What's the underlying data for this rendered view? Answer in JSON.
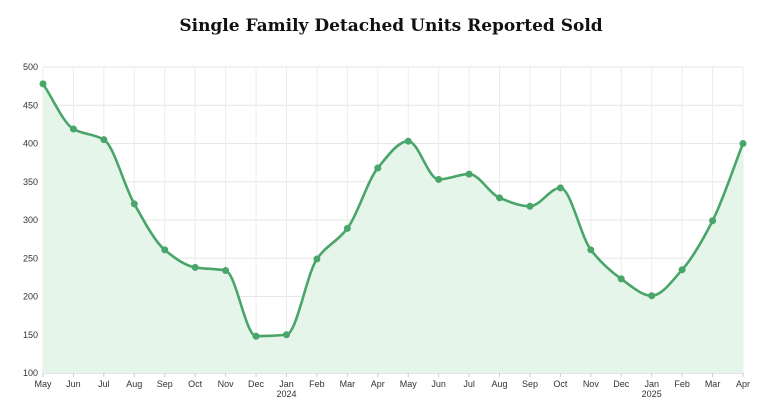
{
  "chart_data": {
    "type": "line",
    "title": "Single Family Detached Units Reported Sold",
    "xlabel": "",
    "ylabel": "",
    "ylim": [
      100,
      500
    ],
    "yticks": [
      100,
      150,
      200,
      250,
      300,
      350,
      400,
      450,
      500
    ],
    "grid": true,
    "legend": "none",
    "categories": [
      "May",
      "Jun",
      "Jul",
      "Aug",
      "Sep",
      "Oct",
      "Nov",
      "Dec",
      "Jan",
      "Feb",
      "Mar",
      "Apr",
      "May",
      "Jun",
      "Jul",
      "Aug",
      "Sep",
      "Oct",
      "Nov",
      "Dec",
      "Jan",
      "Feb",
      "Mar",
      "Apr"
    ],
    "year_labels": [
      {
        "index": 8,
        "label": "2024"
      },
      {
        "index": 20,
        "label": "2025"
      }
    ],
    "series": [
      {
        "name": "Single Family Detached Units Reported Sold",
        "color": "#4aa56a",
        "fill": "#e6f5ea",
        "values": [
          478,
          419,
          405,
          321,
          261,
          238,
          234,
          148,
          150,
          249,
          289,
          368,
          403,
          353,
          360,
          329,
          318,
          342,
          261,
          223,
          201,
          235,
          299,
          400
        ]
      }
    ]
  }
}
